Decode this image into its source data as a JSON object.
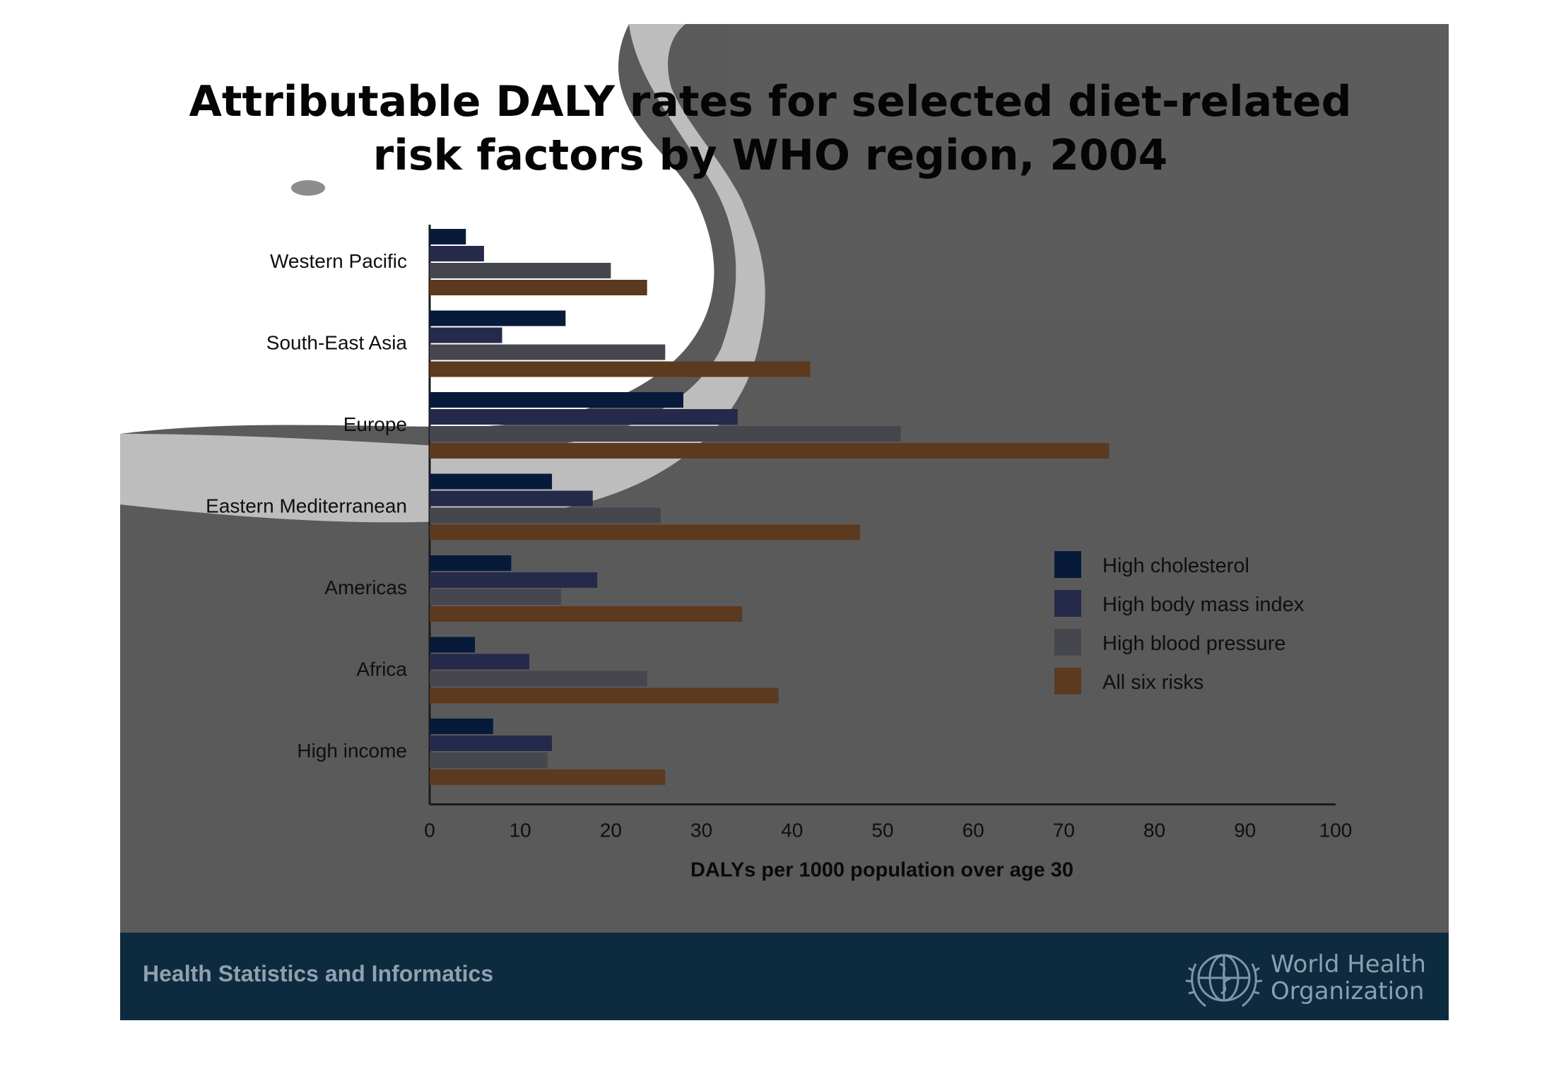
{
  "title_lines": [
    "Attributable DALY rates for selected diet-related",
    "risk factors by WHO region, 2004"
  ],
  "footer": {
    "left_text": "Health Statistics and Informatics",
    "org_lines": [
      "World Health",
      "Organization"
    ]
  },
  "colors": {
    "High cholesterol": "#071a3a",
    "High body mass index": "#262a4a",
    "High blood pressure": "#46464e",
    "All six risks": "#5c3a1f",
    "background": "#5a5a5a",
    "footer": "#0e2a3f"
  },
  "chart_data": {
    "type": "bar",
    "orientation": "horizontal",
    "categories": [
      "Western Pacific",
      "South-East Asia",
      "Europe",
      "Eastern Mediterranean",
      "Americas",
      "Africa",
      "High income"
    ],
    "series": [
      {
        "name": "High cholesterol",
        "values": [
          4,
          15,
          28,
          13.5,
          9,
          5,
          7
        ]
      },
      {
        "name": "High body mass index",
        "values": [
          6,
          8,
          34,
          18,
          18.5,
          11,
          13.5
        ]
      },
      {
        "name": "High blood pressure",
        "values": [
          20,
          26,
          52,
          25.5,
          14.5,
          24,
          13
        ]
      },
      {
        "name": "All six risks",
        "values": [
          24,
          42,
          75,
          47.5,
          34.5,
          38.5,
          26
        ]
      }
    ],
    "xlim": [
      0,
      100
    ],
    "xticks": [
      0,
      10,
      20,
      30,
      40,
      50,
      60,
      70,
      80,
      90,
      100
    ],
    "xlabel": "DALYs per 1000 population over age 30",
    "ylabel": "",
    "legend": "right",
    "grid": false
  }
}
